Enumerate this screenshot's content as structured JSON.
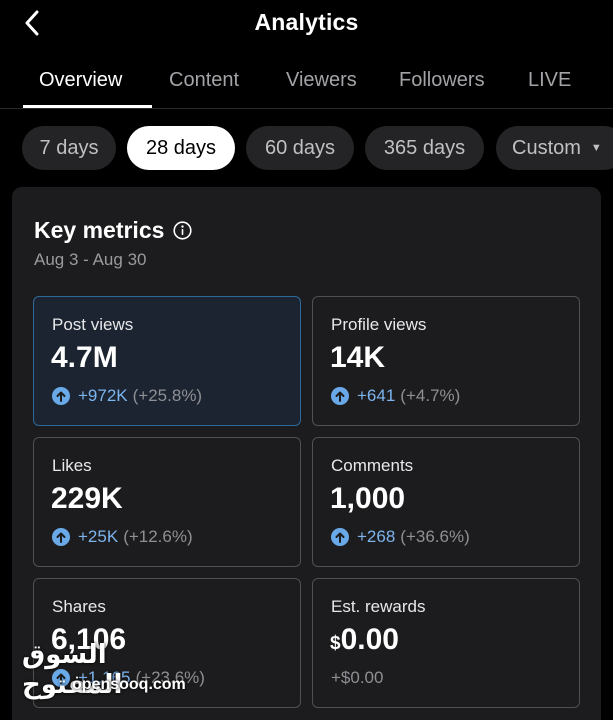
{
  "header": {
    "title": "Analytics"
  },
  "tabs": [
    {
      "label": "Overview",
      "active": true
    },
    {
      "label": "Content",
      "active": false
    },
    {
      "label": "Viewers",
      "active": false
    },
    {
      "label": "Followers",
      "active": false
    },
    {
      "label": "LIVE",
      "active": false
    }
  ],
  "ranges": [
    {
      "label": "7 days",
      "active": false
    },
    {
      "label": "28 days",
      "active": true
    },
    {
      "label": "60 days",
      "active": false
    },
    {
      "label": "365 days",
      "active": false
    },
    {
      "label": "Custom",
      "active": false
    }
  ],
  "key_metrics": {
    "title": "Key metrics",
    "date_range": "Aug 3 - Aug 30",
    "cards": [
      {
        "label": "Post views",
        "value": "4.7M",
        "change": "+972K",
        "change_pct": "(+25.8%)",
        "selected": true
      },
      {
        "label": "Profile views",
        "value": "14K",
        "change": "+641",
        "change_pct": "(+4.7%)"
      },
      {
        "label": "Likes",
        "value": "229K",
        "change": "+25K",
        "change_pct": "(+12.6%)"
      },
      {
        "label": "Comments",
        "value": "1,000",
        "change": "+268",
        "change_pct": "(+36.6%)"
      },
      {
        "label": "Shares",
        "value": "6,106",
        "change": "+1,165",
        "change_pct": "(+23.6%)"
      },
      {
        "label": "Est. rewards",
        "currency": "$",
        "value": "0.00",
        "change": "+$0.00"
      }
    ]
  },
  "watermark": {
    "arabic": "السوق المفتوح",
    "latin": "opensooq.com"
  },
  "colors": {
    "accent_blue": "#6aa9e8",
    "selected_border": "#2d6a9a",
    "panel": "#1c1c1e"
  }
}
